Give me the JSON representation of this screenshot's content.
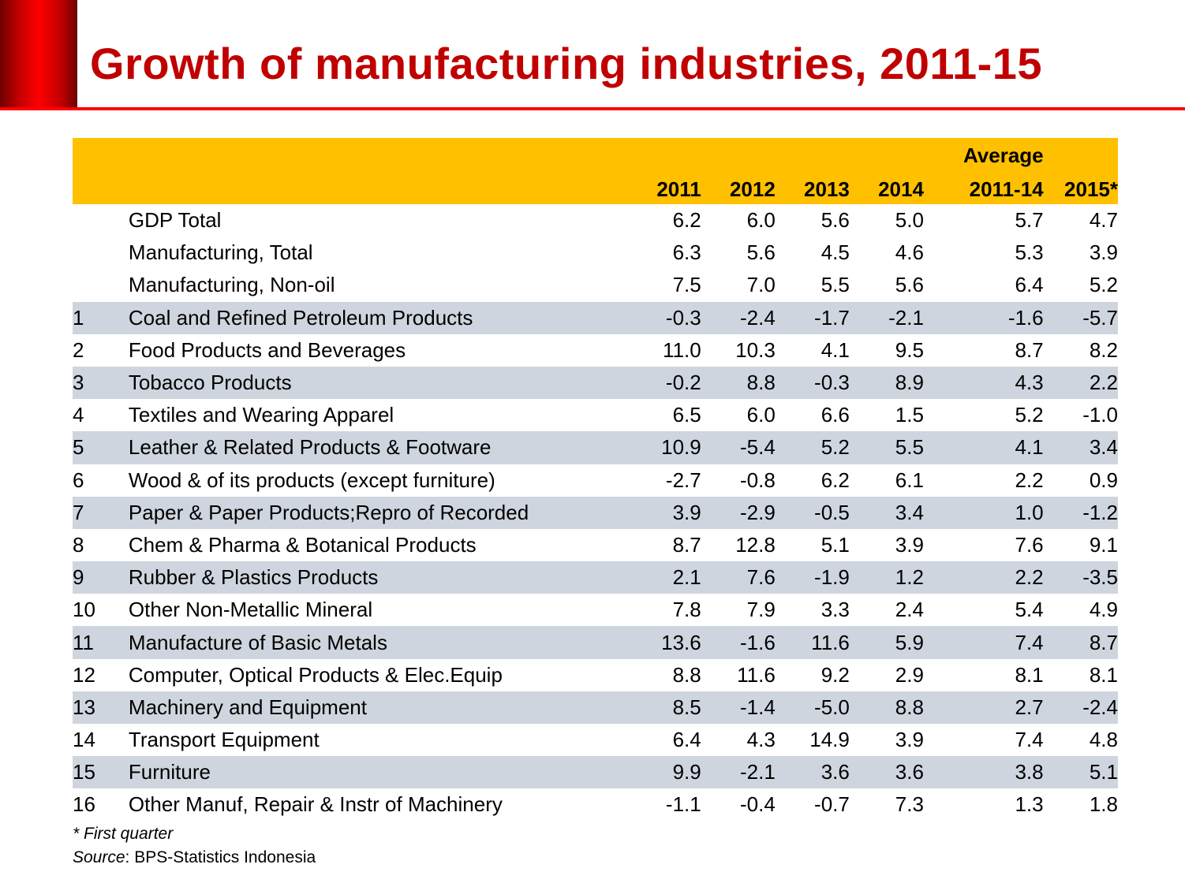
{
  "slide": {
    "title": "Growth of manufacturing industries, 2011-15",
    "accent_color": "#c00000",
    "header_color": "#ffc000",
    "stripe_color": "#cfd5de"
  },
  "table": {
    "header_top": {
      "avg": "Average"
    },
    "columns": [
      "2011",
      "2012",
      "2013",
      "2014",
      "2011-14",
      "2015*"
    ],
    "rows": [
      {
        "idx": "",
        "name": "GDP Total",
        "values": [
          "6.2",
          "6.0",
          "5.6",
          "5.0",
          "5.7",
          "4.7"
        ],
        "shaded": false
      },
      {
        "idx": "",
        "name": "Manufacturing, Total",
        "values": [
          "6.3",
          "5.6",
          "4.5",
          "4.6",
          "5.3",
          "3.9"
        ],
        "shaded": false
      },
      {
        "idx": "",
        "name": "Manufacturing, Non-oil",
        "values": [
          "7.5",
          "7.0",
          "5.5",
          "5.6",
          "6.4",
          "5.2"
        ],
        "shaded": false
      },
      {
        "idx": "1",
        "name": "Coal and Refined Petroleum Products",
        "values": [
          "-0.3",
          "-2.4",
          "-1.7",
          "-2.1",
          "-1.6",
          "-5.7"
        ],
        "shaded": true
      },
      {
        "idx": "2",
        "name": "Food Products and Beverages",
        "values": [
          "11.0",
          "10.3",
          "4.1",
          "9.5",
          "8.7",
          "8.2"
        ],
        "shaded": false
      },
      {
        "idx": "3",
        "name": "Tobacco Products",
        "values": [
          "-0.2",
          "8.8",
          "-0.3",
          "8.9",
          "4.3",
          "2.2"
        ],
        "shaded": true
      },
      {
        "idx": "4",
        "name": "Textiles and Wearing Apparel",
        "values": [
          "6.5",
          "6.0",
          "6.6",
          "1.5",
          "5.2",
          "-1.0"
        ],
        "shaded": false
      },
      {
        "idx": "5",
        "name": "Leather & Related Products & Footware",
        "values": [
          "10.9",
          "-5.4",
          "5.2",
          "5.5",
          "4.1",
          "3.4"
        ],
        "shaded": true
      },
      {
        "idx": "6",
        "name": "Wood & of its products (except furniture)",
        "values": [
          "-2.7",
          "-0.8",
          "6.2",
          "6.1",
          "2.2",
          "0.9"
        ],
        "shaded": false
      },
      {
        "idx": "7",
        "name": "Paper & Paper Products;Repro of Recorded",
        "values": [
          "3.9",
          "-2.9",
          "-0.5",
          "3.4",
          "1.0",
          "-1.2"
        ],
        "shaded": true
      },
      {
        "idx": "8",
        "name": "Chem & Pharma & Botanical Products",
        "values": [
          "8.7",
          "12.8",
          "5.1",
          "3.9",
          "7.6",
          "9.1"
        ],
        "shaded": false
      },
      {
        "idx": "9",
        "name": "Rubber & Plastics Products",
        "values": [
          "2.1",
          "7.6",
          "-1.9",
          "1.2",
          "2.2",
          "-3.5"
        ],
        "shaded": true
      },
      {
        "idx": "10",
        "name": "Other Non-Metallic Mineral",
        "values": [
          "7.8",
          "7.9",
          "3.3",
          "2.4",
          "5.4",
          "4.9"
        ],
        "shaded": false
      },
      {
        "idx": "11",
        "name": "Manufacture of Basic Metals",
        "values": [
          "13.6",
          "-1.6",
          "11.6",
          "5.9",
          "7.4",
          "8.7"
        ],
        "shaded": true
      },
      {
        "idx": "12",
        "name": "Computer, Optical Products & Elec.Equip",
        "values": [
          "8.8",
          "11.6",
          "9.2",
          "2.9",
          "8.1",
          "8.1"
        ],
        "shaded": false
      },
      {
        "idx": "13",
        "name": "Machinery and Equipment",
        "values": [
          "8.5",
          "-1.4",
          "-5.0",
          "8.8",
          "2.7",
          "-2.4"
        ],
        "shaded": true
      },
      {
        "idx": "14",
        "name": "Transport Equipment",
        "values": [
          "6.4",
          "4.3",
          "14.9",
          "3.9",
          "7.4",
          "4.8"
        ],
        "shaded": false
      },
      {
        "idx": "15",
        "name": "Furniture",
        "values": [
          "9.9",
          "-2.1",
          "3.6",
          "3.6",
          "3.8",
          "5.1"
        ],
        "shaded": true
      },
      {
        "idx": "16",
        "name": "Other Manuf, Repair & Instr of Machinery",
        "values": [
          "-1.1",
          "-0.4",
          "-0.7",
          "7.3",
          "1.3",
          "1.8"
        ],
        "shaded": false
      }
    ]
  },
  "footnotes": {
    "note": "* First quarter",
    "source_label": "Source",
    "source_text": ": BPS-Statistics Indonesia"
  }
}
